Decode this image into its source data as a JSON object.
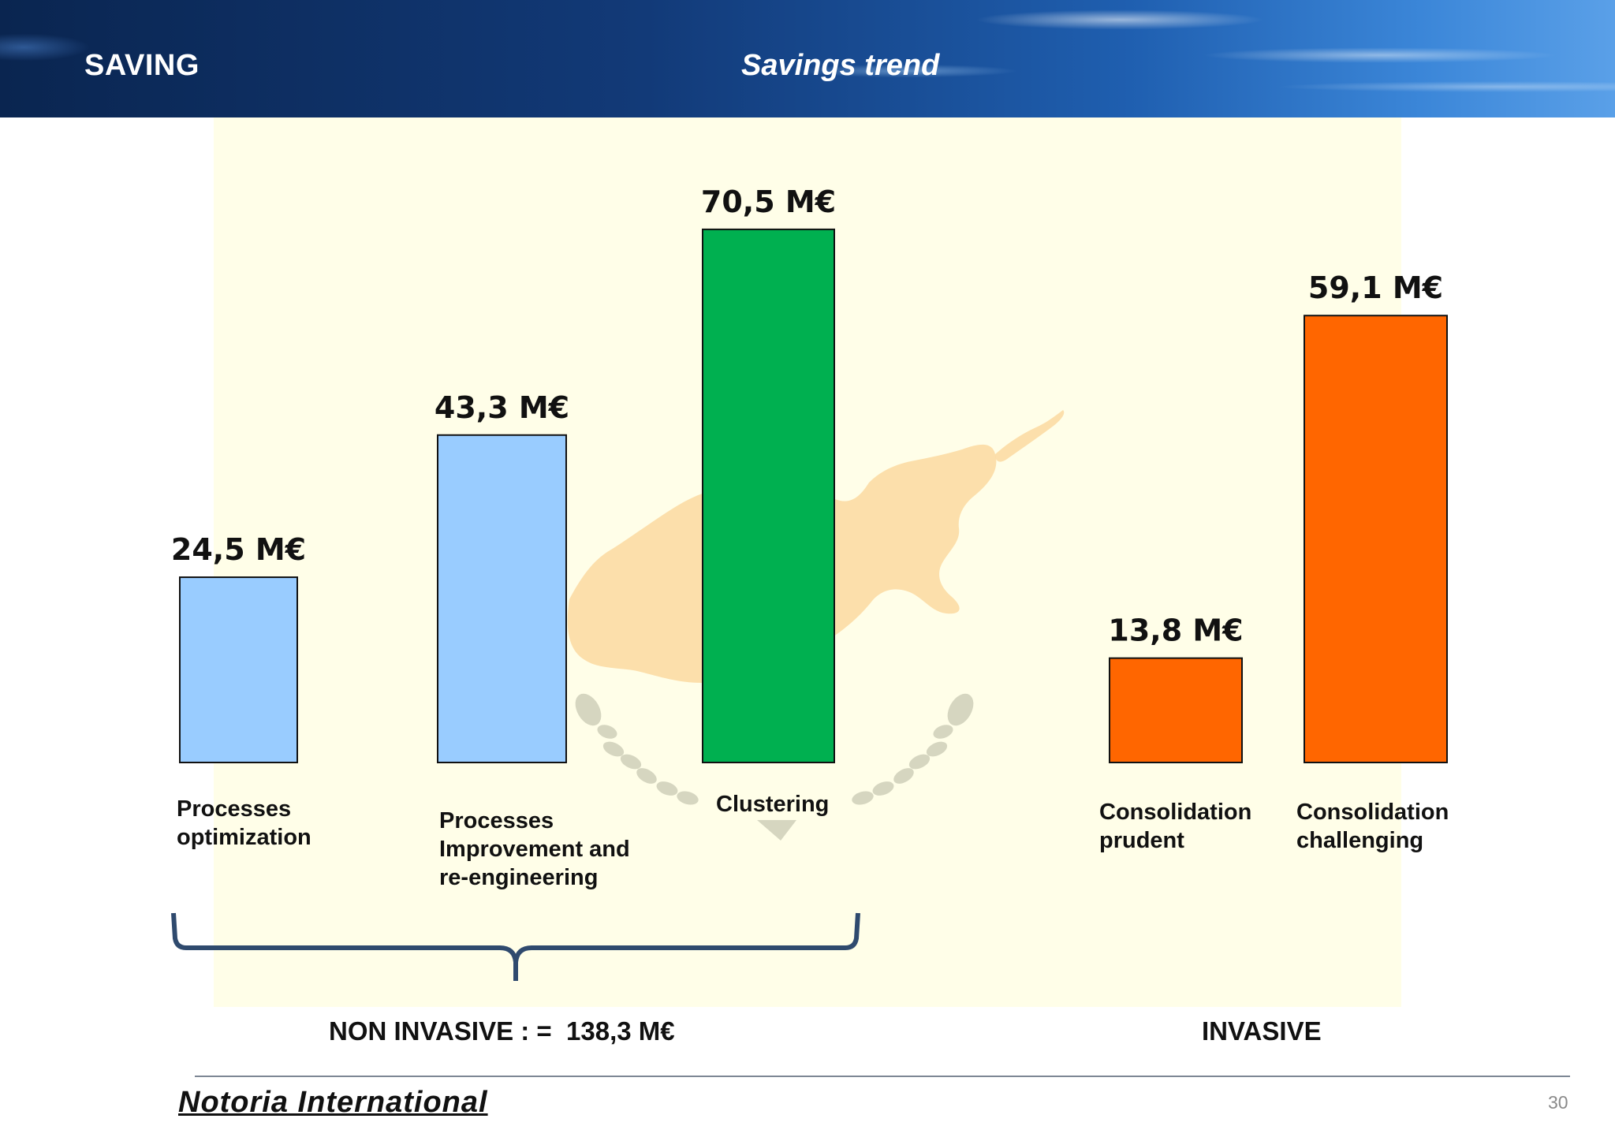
{
  "header": {
    "title": "SAVING",
    "subtitle": "Savings trend"
  },
  "chart_data": {
    "type": "bar",
    "title": "Savings trend",
    "unit": "M€",
    "categories": [
      "Processes\noptimization",
      "Processes\nImprovement and\nre-engineering",
      "Clustering",
      "Consolidation\nprudent",
      "Consolidation\nchallenging"
    ],
    "values": [
      24.5,
      43.3,
      70.5,
      13.8,
      59.1
    ],
    "value_labels": [
      "24,5 M€",
      "43,3 M€",
      "70,5 M€",
      "13,8 M€",
      "59,1 M€"
    ],
    "colors": [
      "#99ccff",
      "#99ccff",
      "#00b050",
      "#ff6600",
      "#ff6600"
    ],
    "groups": [
      {
        "label": "NON INVASIVE : =  138,3 M€",
        "categories": [
          0,
          1,
          2
        ]
      },
      {
        "label": "INVASIVE",
        "categories": [
          3,
          4
        ]
      }
    ],
    "xlabel": "",
    "ylabel": "",
    "grid": false,
    "legend": "none"
  },
  "footer": {
    "company": "Notoria International",
    "page_number": "30"
  },
  "colors": {
    "header_bg": "#123a78",
    "panel_bg": "#fffee8",
    "map_watermark": "#fbd9a0",
    "wreath_watermark": "#c8c9b3",
    "bracket": "#2f4a6e"
  }
}
